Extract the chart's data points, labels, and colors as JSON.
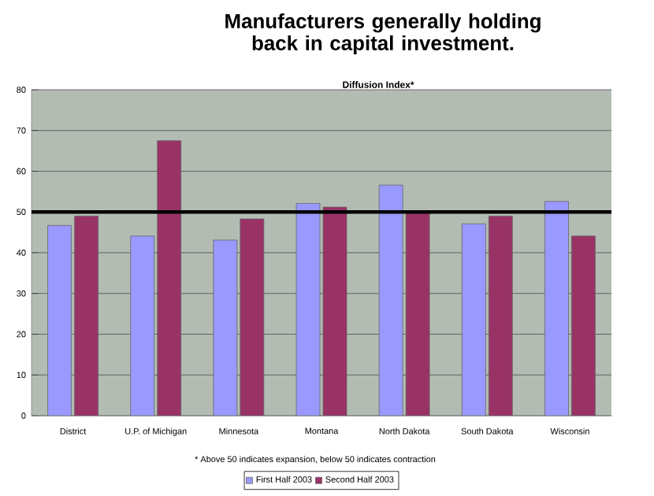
{
  "chart_data": {
    "type": "bar",
    "title": "Manufacturers generally holding back in capital investment.",
    "subtitle": "Diffusion Index*",
    "categories": [
      "District",
      "U.P. of Michigan",
      "Minnesota",
      "Montana",
      "North Dakota",
      "South Dakota",
      "Wisconsin"
    ],
    "series": [
      {
        "name": "First Half 2003",
        "color": "#9999ff",
        "values": [
          46.7,
          44.1,
          43.1,
          52.1,
          56.6,
          47.1,
          52.6
        ]
      },
      {
        "name": "Second Half 2003",
        "color": "#993366",
        "values": [
          49.0,
          67.5,
          48.3,
          51.2,
          50.2,
          49.0,
          44.1
        ]
      }
    ],
    "ylim": [
      0,
      80
    ],
    "yticks": [
      0,
      10,
      20,
      30,
      40,
      50,
      60,
      70,
      80
    ],
    "grid": "y",
    "legend": "bottom",
    "ref_lines": [
      {
        "axis": "y",
        "value": 50,
        "color": "#000000"
      }
    ],
    "annotations": [
      "*  Above 50 indicates expansion, below 50 indicates contraction"
    ]
  }
}
